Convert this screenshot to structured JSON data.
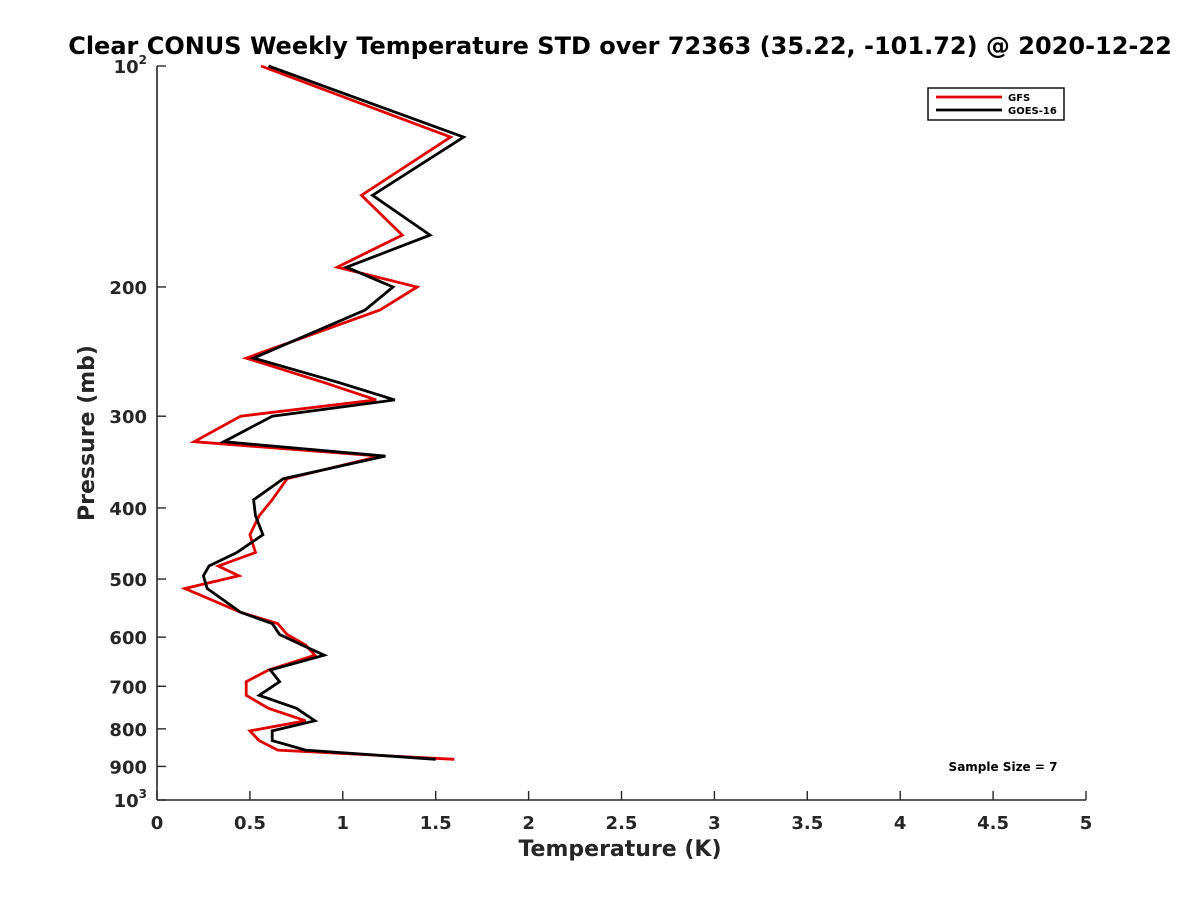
{
  "chart_data": {
    "type": "line",
    "title": "Clear CONUS Weekly Temperature STD over 72363 (35.22, -101.72) @ 2020-12-22",
    "xlabel": "Temperature (K)",
    "ylabel": "Pressure (mb)",
    "xlim": [
      0,
      5
    ],
    "ylim": [
      100,
      1000
    ],
    "y_scale": "log",
    "y_reversed": true,
    "grid": false,
    "legend_position": "top-right",
    "x_ticks": [
      {
        "value": 0,
        "label": "0"
      },
      {
        "value": 0.5,
        "label": "0.5"
      },
      {
        "value": 1,
        "label": "1"
      },
      {
        "value": 1.5,
        "label": "1.5"
      },
      {
        "value": 2,
        "label": "2"
      },
      {
        "value": 2.5,
        "label": "2.5"
      },
      {
        "value": 3,
        "label": "3"
      },
      {
        "value": 3.5,
        "label": "3.5"
      },
      {
        "value": 4,
        "label": "4"
      },
      {
        "value": 4.5,
        "label": "4.5"
      },
      {
        "value": 5,
        "label": "5"
      }
    ],
    "y_ticks": [
      {
        "value": 100,
        "label": "10",
        "sup": "2"
      },
      {
        "value": 200,
        "label": "200"
      },
      {
        "value": 300,
        "label": "300"
      },
      {
        "value": 400,
        "label": "400"
      },
      {
        "value": 500,
        "label": "500"
      },
      {
        "value": 600,
        "label": "600"
      },
      {
        "value": 700,
        "label": "700"
      },
      {
        "value": 800,
        "label": "800"
      },
      {
        "value": 900,
        "label": "900"
      },
      {
        "value": 1000,
        "label": "10",
        "sup": "3"
      }
    ],
    "annotation": "Sample Size = 7",
    "series": [
      {
        "name": "GFS",
        "color": "#e00000",
        "points": [
          [
            0.56,
            100
          ],
          [
            1.58,
            125
          ],
          [
            1.1,
            150
          ],
          [
            1.32,
            170
          ],
          [
            0.97,
            188
          ],
          [
            1.4,
            200
          ],
          [
            1.2,
            215
          ],
          [
            0.48,
            250
          ],
          [
            0.9,
            270
          ],
          [
            1.18,
            285
          ],
          [
            0.45,
            300
          ],
          [
            0.2,
            325
          ],
          [
            1.2,
            340
          ],
          [
            0.7,
            365
          ],
          [
            0.62,
            390
          ],
          [
            0.55,
            410
          ],
          [
            0.5,
            435
          ],
          [
            0.53,
            460
          ],
          [
            0.33,
            480
          ],
          [
            0.44,
            495
          ],
          [
            0.15,
            515
          ],
          [
            0.45,
            555
          ],
          [
            0.65,
            575
          ],
          [
            0.7,
            595
          ],
          [
            0.8,
            615
          ],
          [
            0.85,
            635
          ],
          [
            0.6,
            665
          ],
          [
            0.48,
            690
          ],
          [
            0.48,
            720
          ],
          [
            0.6,
            750
          ],
          [
            0.8,
            780
          ],
          [
            0.5,
            805
          ],
          [
            0.55,
            830
          ],
          [
            0.65,
            855
          ],
          [
            1.6,
            880
          ]
        ]
      },
      {
        "name": "GOES-16",
        "color": "#000000",
        "points": [
          [
            0.6,
            100
          ],
          [
            1.65,
            125
          ],
          [
            1.16,
            150
          ],
          [
            1.47,
            170
          ],
          [
            1.02,
            188
          ],
          [
            1.27,
            200
          ],
          [
            1.12,
            215
          ],
          [
            0.52,
            250
          ],
          [
            0.98,
            270
          ],
          [
            1.28,
            285
          ],
          [
            0.62,
            300
          ],
          [
            0.36,
            325
          ],
          [
            1.23,
            340
          ],
          [
            0.68,
            365
          ],
          [
            0.52,
            390
          ],
          [
            0.53,
            410
          ],
          [
            0.57,
            435
          ],
          [
            0.43,
            460
          ],
          [
            0.28,
            480
          ],
          [
            0.25,
            495
          ],
          [
            0.27,
            515
          ],
          [
            0.45,
            555
          ],
          [
            0.62,
            575
          ],
          [
            0.66,
            595
          ],
          [
            0.78,
            615
          ],
          [
            0.9,
            635
          ],
          [
            0.61,
            665
          ],
          [
            0.66,
            690
          ],
          [
            0.55,
            720
          ],
          [
            0.75,
            750
          ],
          [
            0.85,
            780
          ],
          [
            0.62,
            805
          ],
          [
            0.62,
            830
          ],
          [
            0.8,
            855
          ],
          [
            1.5,
            880
          ]
        ]
      }
    ]
  }
}
